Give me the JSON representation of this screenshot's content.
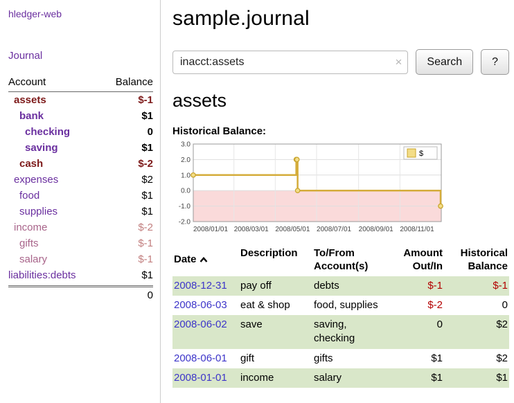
{
  "colors": {
    "link_purple": "#6a2f9f",
    "date_link_blue": "#3d35c9",
    "negative": "#b30000",
    "negative_dark": "#7d1a1a",
    "negative_faded": "#c27f7f",
    "row_green": "#d9e7c9"
  },
  "sidebar": {
    "app_title": "hledger-web",
    "journal_link": "Journal",
    "accounts": {
      "header": {
        "account": "Account",
        "balance": "Balance"
      },
      "rows": [
        {
          "name": "assets",
          "balance": "$-1",
          "indent": 1,
          "bold": true,
          "name_color": "#7d1a1a",
          "balance_color": "#7d1a1a"
        },
        {
          "name": "bank",
          "balance": "$1",
          "indent": 2,
          "bold": true,
          "name_color": "#6a2f9f",
          "balance_color": "#000000"
        },
        {
          "name": "checking",
          "balance": "0",
          "indent": 3,
          "bold": true,
          "name_color": "#6a2f9f",
          "balance_color": "#000000"
        },
        {
          "name": "saving",
          "balance": "$1",
          "indent": 3,
          "bold": true,
          "name_color": "#6a2f9f",
          "balance_color": "#000000"
        },
        {
          "name": "cash",
          "balance": "$-2",
          "indent": 2,
          "bold": true,
          "name_color": "#7d1a1a",
          "balance_color": "#7d1a1a"
        },
        {
          "name": "expenses",
          "balance": "$2",
          "indent": 1,
          "bold": false,
          "name_color": "#6a2f9f",
          "balance_color": "#000000"
        },
        {
          "name": "food",
          "balance": "$1",
          "indent": 2,
          "bold": false,
          "name_color": "#6a2f9f",
          "balance_color": "#000000"
        },
        {
          "name": "supplies",
          "balance": "$1",
          "indent": 2,
          "bold": false,
          "name_color": "#6a2f9f",
          "balance_color": "#000000"
        },
        {
          "name": "income",
          "balance": "$-2",
          "indent": 1,
          "bold": false,
          "name_color": "#a8648a",
          "balance_color": "#c27f7f"
        },
        {
          "name": "gifts",
          "balance": "$-1",
          "indent": 2,
          "bold": false,
          "name_color": "#a8648a",
          "balance_color": "#c27f7f"
        },
        {
          "name": "salary",
          "balance": "$-1",
          "indent": 2,
          "bold": false,
          "name_color": "#a8648a",
          "balance_color": "#c27f7f"
        },
        {
          "name": "liabilities:debts",
          "balance": "$1",
          "indent": 0,
          "bold": false,
          "name_color": "#6a2f9f",
          "balance_color": "#000000"
        }
      ],
      "total": "0"
    }
  },
  "main": {
    "title": "sample.journal",
    "search": {
      "value": "inacct:assets",
      "clear_icon": "×",
      "button_label": "Search",
      "help_label": "?"
    },
    "heading": "assets",
    "chart_title": "Historical Balance:",
    "register": {
      "headers": {
        "date": "Date",
        "description": "Description",
        "account": "To/From Account(s)",
        "amount": "Amount Out/In",
        "balance": "Historical Balance"
      },
      "rows": [
        {
          "date": "2008-12-31",
          "description": "pay off",
          "account": "debts",
          "amount": "$-1",
          "balance": "$-1"
        },
        {
          "date": "2008-06-03",
          "description": "eat & shop",
          "account": "food, supplies",
          "amount": "$-2",
          "balance": "0"
        },
        {
          "date": "2008-06-02",
          "description": "save",
          "account": "saving, checking",
          "amount": "0",
          "balance": "$2"
        },
        {
          "date": "2008-06-01",
          "description": "gift",
          "account": "gifts",
          "amount": "$1",
          "balance": "$2"
        },
        {
          "date": "2008-01-01",
          "description": "income",
          "account": "salary",
          "amount": "$1",
          "balance": "$1"
        }
      ]
    }
  },
  "chart_data": {
    "type": "line",
    "step": true,
    "title": "Historical Balance",
    "series": [
      {
        "name": "$",
        "x": [
          "2008-01-01",
          "2008-06-01",
          "2008-06-02",
          "2008-06-03",
          "2008-12-31"
        ],
        "values": [
          1,
          2,
          2,
          0,
          -1
        ]
      }
    ],
    "x_range": [
      "2008-01-01",
      "2009-01-01"
    ],
    "ylim": [
      -2,
      3
    ],
    "yticks": [
      3,
      2,
      1,
      0,
      -1,
      -2
    ],
    "xticks": [
      "2008/01/01",
      "2008/03/01",
      "2008/05/01",
      "2008/07/01",
      "2008/09/01",
      "2008/11/01"
    ],
    "legend": {
      "position": "top-right",
      "label": "$"
    },
    "grid": true,
    "line_color": "#d4ac3a",
    "marker_fill": "#f3dd87",
    "marker_stroke": "#c9a52f",
    "negative_region_fill": "#fadada"
  }
}
